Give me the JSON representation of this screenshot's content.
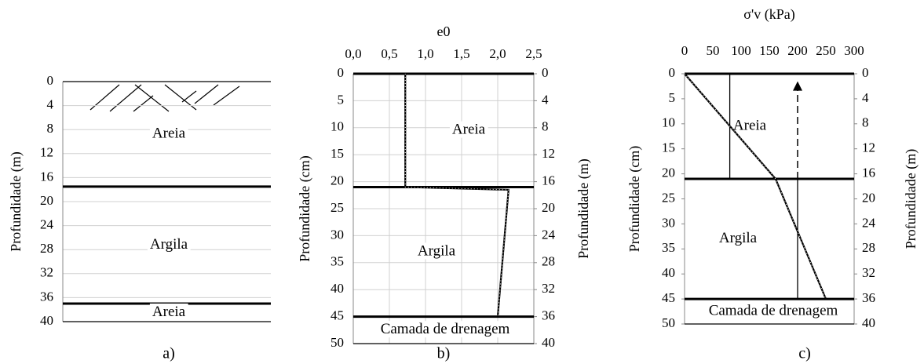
{
  "chart_data": [
    {
      "type": "profile",
      "caption": "a)",
      "ylabel": "Profundidade (m)",
      "ylim": [
        0,
        40
      ],
      "yticks": [
        0,
        4,
        8,
        12,
        16,
        20,
        24,
        28,
        32,
        36,
        40
      ],
      "grid": true,
      "boundaries": [
        17.5,
        37
      ],
      "layers": [
        "Areia",
        "Argila",
        "Areia"
      ]
    },
    {
      "type": "line",
      "caption": "b)",
      "title": "e0",
      "ylabel": "Profundidade (cm)",
      "y2label": "Profundidade (m)",
      "xlim": [
        0,
        2.5
      ],
      "xticks": [
        {
          "value": 0,
          "label": "0,0"
        },
        {
          "value": 0.5,
          "label": "0,5"
        },
        {
          "value": 1,
          "label": "1,0"
        },
        {
          "value": 1.5,
          "label": "1,5"
        },
        {
          "value": 2,
          "label": "2,0"
        },
        {
          "value": 2.5,
          "label": "2,5"
        }
      ],
      "ylim": [
        0,
        50
      ],
      "yticks": [
        0,
        5,
        10,
        15,
        20,
        25,
        30,
        35,
        40,
        45,
        50
      ],
      "y2lim": [
        0,
        40
      ],
      "y2ticks": [
        0,
        4,
        8,
        12,
        16,
        20,
        24,
        28,
        32,
        36,
        40
      ],
      "grid": true,
      "series": [
        {
          "color": "#000000",
          "x": [
            0.72,
            0.72,
            2.15,
            2.0
          ],
          "values": [
            0,
            21,
            21.5,
            45
          ]
        }
      ],
      "boundaries": [
        0,
        21,
        45
      ],
      "layers": [
        "Areia",
        "Argila",
        "Camada de drenagem"
      ]
    },
    {
      "type": "line",
      "caption": "c)",
      "title": "σ'v (kPa)",
      "ylabel": "Profundidade (cm)",
      "y2label": "Profundidade (m)",
      "xlim": [
        0,
        300
      ],
      "xticks": [
        0,
        50,
        100,
        150,
        200,
        250,
        300
      ],
      "ylim": [
        0,
        50
      ],
      "yticks": [
        0,
        5,
        10,
        15,
        20,
        25,
        30,
        35,
        40,
        45,
        50
      ],
      "y2lim": [
        0,
        40
      ],
      "y2ticks": [
        0,
        4,
        8,
        12,
        16,
        20,
        24,
        28,
        32,
        36,
        40
      ],
      "grid": false,
      "series": [
        {
          "color": "#000000",
          "x": [
            0,
            161,
            250
          ],
          "values": [
            0,
            21,
            45
          ]
        }
      ],
      "lines": [
        {
          "x": [
            80,
            80
          ],
          "values": [
            0,
            21
          ]
        },
        {
          "x": [
            200,
            200
          ],
          "values": [
            21,
            45
          ]
        }
      ],
      "arrow": {
        "x": 200,
        "values": [
          21,
          1.5
        ]
      },
      "boundaries": [
        0,
        21,
        45
      ],
      "layers": [
        "Areia",
        "Argila",
        "Camada de drenagem"
      ]
    }
  ]
}
